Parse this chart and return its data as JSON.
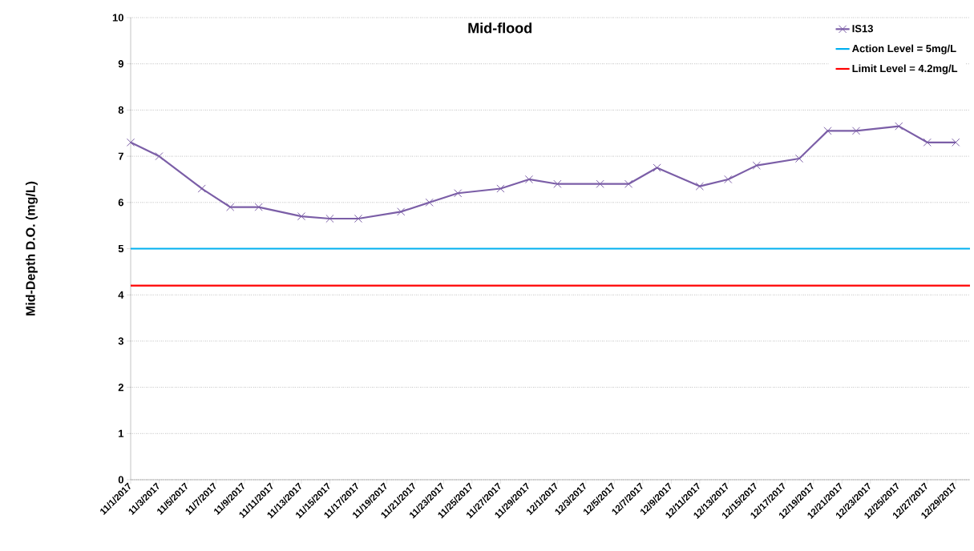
{
  "chart_data": {
    "type": "line",
    "title": "Mid-flood",
    "ylabel": "Mid-Depth D.O. (mg/L)",
    "x": [
      "2017-11-01",
      "2017-11-03",
      "2017-11-06",
      "2017-11-08",
      "2017-11-10",
      "2017-11-13",
      "2017-11-15",
      "2017-11-17",
      "2017-11-20",
      "2017-11-22",
      "2017-11-24",
      "2017-11-27",
      "2017-11-29",
      "2017-12-01",
      "2017-12-04",
      "2017-12-06",
      "2017-12-08",
      "2017-12-11",
      "2017-12-13",
      "2017-12-15",
      "2017-12-18",
      "2017-12-20",
      "2017-12-22",
      "2017-12-25",
      "2017-12-27",
      "2017-12-29"
    ],
    "series": [
      {
        "name": "IS13",
        "color": "#7b5ea7",
        "values": [
          7.3,
          7.0,
          6.3,
          5.9,
          5.9,
          5.7,
          5.65,
          5.65,
          5.8,
          6.0,
          6.2,
          6.3,
          6.5,
          6.4,
          6.4,
          6.4,
          6.75,
          6.35,
          6.5,
          6.8,
          6.95,
          7.55,
          7.55,
          7.65,
          7.3,
          7.3
        ]
      }
    ],
    "ref_lines": [
      {
        "axis": "y",
        "value": 5,
        "label": "Action Level = 5mg/L",
        "color": "#00b0f0"
      },
      {
        "axis": "y",
        "value": 4.2,
        "label": "Limit Level = 4.2mg/L",
        "color": "#ff0000"
      }
    ],
    "xlim": [
      "2017-11-01",
      "2017-12-30"
    ],
    "xticks": [
      {
        "value": "2017-11-01",
        "label": "11/1/2017"
      },
      {
        "value": "2017-11-03",
        "label": "11/3/2017"
      },
      {
        "value": "2017-11-05",
        "label": "11/5/2017"
      },
      {
        "value": "2017-11-07",
        "label": "11/7/2017"
      },
      {
        "value": "2017-11-09",
        "label": "11/9/2017"
      },
      {
        "value": "2017-11-11",
        "label": "11/11/2017"
      },
      {
        "value": "2017-11-13",
        "label": "11/13/2017"
      },
      {
        "value": "2017-11-15",
        "label": "11/15/2017"
      },
      {
        "value": "2017-11-17",
        "label": "11/17/2017"
      },
      {
        "value": "2017-11-19",
        "label": "11/19/2017"
      },
      {
        "value": "2017-11-21",
        "label": "11/21/2017"
      },
      {
        "value": "2017-11-23",
        "label": "11/23/2017"
      },
      {
        "value": "2017-11-25",
        "label": "11/25/2017"
      },
      {
        "value": "2017-11-27",
        "label": "11/27/2017"
      },
      {
        "value": "2017-11-29",
        "label": "11/29/2017"
      },
      {
        "value": "2017-12-01",
        "label": "12/1/2017"
      },
      {
        "value": "2017-12-03",
        "label": "12/3/2017"
      },
      {
        "value": "2017-12-05",
        "label": "12/5/2017"
      },
      {
        "value": "2017-12-07",
        "label": "12/7/2017"
      },
      {
        "value": "2017-12-09",
        "label": "12/9/2017"
      },
      {
        "value": "2017-12-11",
        "label": "12/11/2017"
      },
      {
        "value": "2017-12-13",
        "label": "12/13/2017"
      },
      {
        "value": "2017-12-15",
        "label": "12/15/2017"
      },
      {
        "value": "2017-12-17",
        "label": "12/17/2017"
      },
      {
        "value": "2017-12-19",
        "label": "12/19/2017"
      },
      {
        "value": "2017-12-21",
        "label": "12/21/2017"
      },
      {
        "value": "2017-12-23",
        "label": "12/23/2017"
      },
      {
        "value": "2017-12-25",
        "label": "12/25/2017"
      },
      {
        "value": "2017-12-27",
        "label": "12/27/2017"
      },
      {
        "value": "2017-12-29",
        "label": "12/29/2017"
      }
    ],
    "ylim": [
      0,
      10
    ],
    "yticks": [
      0,
      1,
      2,
      3,
      4,
      5,
      6,
      7,
      8,
      9,
      10
    ],
    "grid": "y",
    "legend": "top right",
    "marker": "cross",
    "line_style": "solid"
  }
}
